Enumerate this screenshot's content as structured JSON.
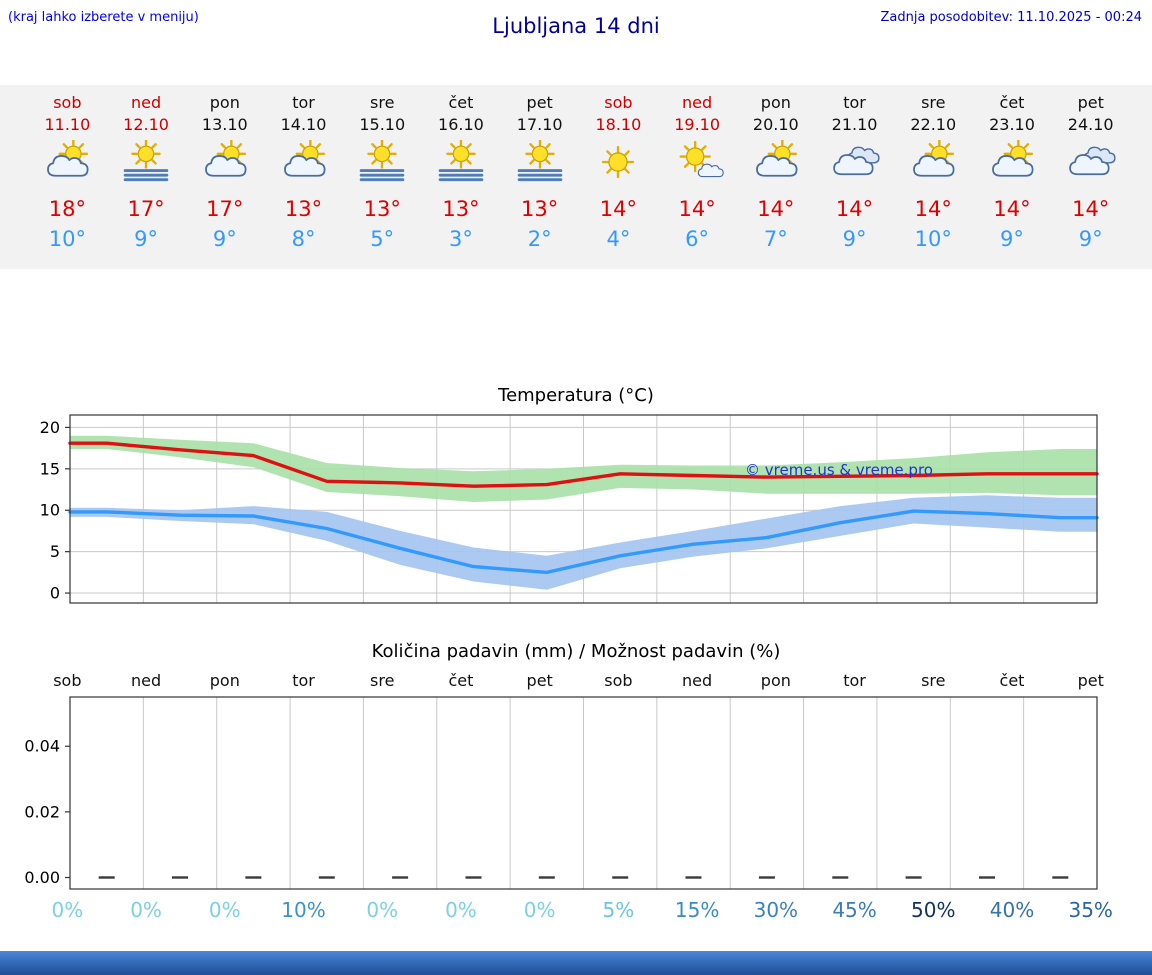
{
  "header": {
    "hint": "(kraj lahko izberete v meniju)",
    "title": "Ljubljana 14 dni",
    "last_update": "Zadnja posodobitev: 11.10.2025 - 00:24"
  },
  "colors": {
    "hint_blue": "#0000ee",
    "title_blue": "#000099",
    "update_blue": "#0000cc",
    "weekend_red": "#cc0000",
    "high_temp_red": "#dd0000",
    "low_temp_blue": "#3399ff",
    "strip_background": "#f2f2f2",
    "bottom_bar": "#2f6cb5"
  },
  "forecast": {
    "days": [
      {
        "day": "sob",
        "date": "11.10",
        "weekend": true,
        "icon": "sun-cloud",
        "high": "18°",
        "low": "10°"
      },
      {
        "day": "ned",
        "date": "12.10",
        "weekend": true,
        "icon": "sun-fog",
        "high": "17°",
        "low": "9°"
      },
      {
        "day": "pon",
        "date": "13.10",
        "weekend": false,
        "icon": "sun-cloud",
        "high": "17°",
        "low": "9°"
      },
      {
        "day": "tor",
        "date": "14.10",
        "weekend": false,
        "icon": "sun-cloud",
        "high": "13°",
        "low": "8°"
      },
      {
        "day": "sre",
        "date": "15.10",
        "weekend": false,
        "icon": "sun-fog",
        "high": "13°",
        "low": "5°"
      },
      {
        "day": "čet",
        "date": "16.10",
        "weekend": false,
        "icon": "sun-fog",
        "high": "13°",
        "low": "3°"
      },
      {
        "day": "pet",
        "date": "17.10",
        "weekend": false,
        "icon": "sun-fog",
        "high": "13°",
        "low": "2°"
      },
      {
        "day": "sob",
        "date": "18.10",
        "weekend": true,
        "icon": "sun",
        "high": "14°",
        "low": "4°"
      },
      {
        "day": "ned",
        "date": "19.10",
        "weekend": true,
        "icon": "sun-small-cloud",
        "high": "14°",
        "low": "6°"
      },
      {
        "day": "pon",
        "date": "20.10",
        "weekend": false,
        "icon": "sun-cloud",
        "high": "14°",
        "low": "7°"
      },
      {
        "day": "tor",
        "date": "21.10",
        "weekend": false,
        "icon": "clouds",
        "high": "14°",
        "low": "9°"
      },
      {
        "day": "sre",
        "date": "22.10",
        "weekend": false,
        "icon": "sun-cloud",
        "high": "14°",
        "low": "10°"
      },
      {
        "day": "čet",
        "date": "23.10",
        "weekend": false,
        "icon": "sun-cloud",
        "high": "14°",
        "low": "9°"
      },
      {
        "day": "pet",
        "date": "24.10",
        "weekend": false,
        "icon": "clouds",
        "high": "14°",
        "low": "9°"
      }
    ]
  },
  "chart_data": [
    {
      "type": "line",
      "title": "Temperatura (°C)",
      "categories": [
        "sob 11.10",
        "ned 12.10",
        "pon 13.10",
        "tor 14.10",
        "sre 15.10",
        "čet 16.10",
        "pet 17.10",
        "sob 18.10",
        "ned 19.10",
        "pon 20.10",
        "tor 21.10",
        "sre 22.10",
        "čet 23.10",
        "pet 24.10"
      ],
      "ylim": [
        -1,
        21
      ],
      "yticks": [
        0,
        5,
        10,
        15,
        20
      ],
      "grid": true,
      "legend_position": "none",
      "series": [
        {
          "name": "max",
          "color": "#dd1111",
          "values": [
            18.1,
            17.3,
            16.6,
            13.5,
            13.3,
            12.9,
            13.1,
            14.4,
            14.2,
            14.0,
            14.1,
            14.2,
            14.4,
            14.4
          ]
        },
        {
          "name": "min",
          "color": "#3399ff",
          "values": [
            9.8,
            9.4,
            9.3,
            7.8,
            5.4,
            3.2,
            2.5,
            4.5,
            5.9,
            6.7,
            8.5,
            9.9,
            9.6,
            9.1
          ]
        }
      ],
      "bands": [
        {
          "series": "max",
          "color": "#a9e0a9",
          "upper": [
            19.0,
            18.5,
            18.1,
            15.7,
            15.1,
            14.7,
            15.0,
            15.5,
            15.4,
            15.4,
            15.8,
            16.3,
            17.0,
            17.4
          ],
          "lower": [
            17.4,
            16.4,
            15.2,
            12.2,
            11.7,
            11.0,
            11.3,
            12.7,
            12.5,
            12.0,
            12.0,
            12.0,
            12.1,
            11.8
          ]
        },
        {
          "series": "min",
          "color": "#a3c4ef",
          "upper": [
            10.3,
            10.0,
            10.5,
            9.8,
            7.5,
            5.5,
            4.5,
            6.1,
            7.5,
            9.0,
            10.5,
            11.5,
            11.8,
            11.5
          ],
          "lower": [
            9.2,
            8.7,
            8.3,
            6.3,
            3.4,
            1.4,
            0.4,
            3.0,
            4.4,
            5.4,
            6.9,
            8.4,
            7.9,
            7.4
          ]
        }
      ],
      "annotations": [
        {
          "text": "© vreme.us & vreme.pro",
          "color": "#2233cc"
        }
      ]
    },
    {
      "type": "bar",
      "title": "Količina padavin (mm) / Možnost padavin (%)",
      "categories": [
        "sob",
        "ned",
        "pon",
        "tor",
        "sre",
        "čet",
        "pet",
        "sob",
        "ned",
        "pon",
        "tor",
        "sre",
        "čet",
        "pet"
      ],
      "values": [
        0,
        0,
        0,
        0,
        0,
        0,
        0,
        0,
        0,
        0,
        0,
        0,
        0,
        0
      ],
      "ylim": [
        0,
        0.05
      ],
      "yticks": [
        "0.00",
        "0.02",
        "0.04"
      ],
      "grid": true,
      "percent_labels": [
        {
          "text": "0%",
          "color": "#7ad1e4"
        },
        {
          "text": "0%",
          "color": "#7ad1e4"
        },
        {
          "text": "0%",
          "color": "#7ad1e4"
        },
        {
          "text": "10%",
          "color": "#3a93c8"
        },
        {
          "text": "0%",
          "color": "#7ad1e4"
        },
        {
          "text": "0%",
          "color": "#7ad1e4"
        },
        {
          "text": "0%",
          "color": "#7ad1e4"
        },
        {
          "text": "5%",
          "color": "#6cc6de"
        },
        {
          "text": "15%",
          "color": "#3a8cc0"
        },
        {
          "text": "30%",
          "color": "#3a82bd"
        },
        {
          "text": "45%",
          "color": "#3a7cb8"
        },
        {
          "text": "50%",
          "color": "#14315e"
        },
        {
          "text": "40%",
          "color": "#3273ae"
        },
        {
          "text": "35%",
          "color": "#2a669f"
        }
      ]
    }
  ]
}
